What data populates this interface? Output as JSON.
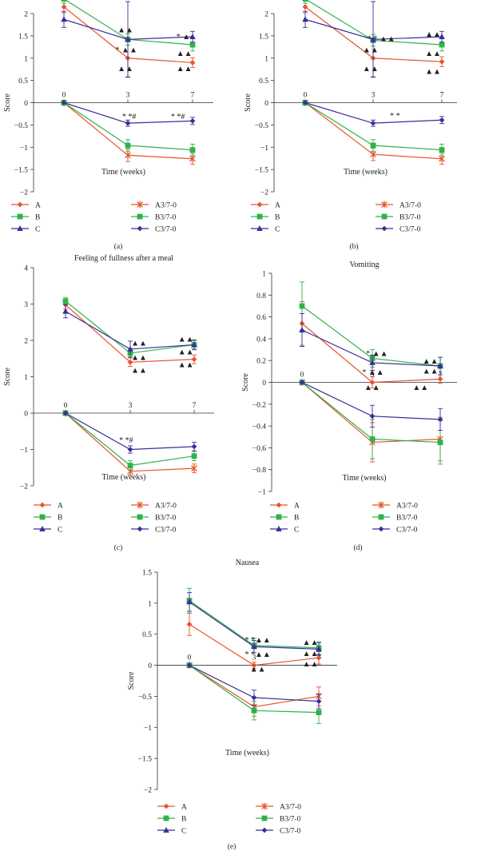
{
  "colors": {
    "A": "#e8542a",
    "B": "#2fb24a",
    "C": "#3a2f98",
    "C37": "#3a2f98",
    "axis": "#333333",
    "marker": "#111111"
  },
  "chart_data": [
    {
      "panel_label": "(a)",
      "title": "",
      "type": "line",
      "xlabel": "Time (weeks)",
      "ylabel": "Score",
      "ylim": [
        -2,
        2
      ],
      "yticks": [
        "−2",
        "−1.5",
        "−1",
        "−0.5",
        "0",
        "0.5",
        "1",
        "1.5",
        "2"
      ],
      "xticks": [
        "0",
        "3",
        "7"
      ],
      "series": [
        {
          "name": "A",
          "color_key": "A",
          "symbol": "diamond",
          "x": [
            0,
            3,
            7
          ],
          "y": [
            2.15,
            1.0,
            0.9
          ],
          "err": [
            0.13,
            0.42,
            0.11
          ]
        },
        {
          "name": "B",
          "color_key": "B",
          "symbol": "square",
          "x": [
            0,
            3,
            7
          ],
          "y": [
            2.33,
            1.42,
            1.3
          ],
          "err": [
            0.1,
            0.13,
            0.14
          ]
        },
        {
          "name": "C",
          "color_key": "C",
          "symbol": "triangle",
          "x": [
            0,
            3,
            7
          ],
          "y": [
            1.87,
            1.42,
            1.48
          ],
          "err": [
            0.18,
            0.85,
            0.12
          ]
        },
        {
          "name": "A3/7-0",
          "color_key": "A",
          "symbol": "x",
          "x": [
            0,
            3,
            7
          ],
          "y": [
            0,
            -1.18,
            -1.26
          ],
          "err": [
            0,
            0.14,
            0.12
          ]
        },
        {
          "name": "B3/7-0",
          "color_key": "B",
          "symbol": "square",
          "x": [
            0,
            3,
            7
          ],
          "y": [
            0,
            -0.96,
            -1.06
          ],
          "err": [
            0,
            0.13,
            0.13
          ]
        },
        {
          "name": "C3/7-0",
          "color_key": "C37",
          "symbol": "diamond",
          "x": [
            0,
            3,
            7
          ],
          "y": [
            0,
            -0.46,
            -0.41
          ],
          "err": [
            0,
            0.07,
            0.08
          ]
        }
      ],
      "annotations": [
        {
          "text": "▲▲",
          "x": 3.35,
          "y": 1.65
        },
        {
          "text": "* ▲▲",
          "x": 3.4,
          "y": 1.2
        },
        {
          "text": "▲▲",
          "x": 3.35,
          "y": 0.78
        },
        {
          "text": "* ▲",
          "x": 6.5,
          "y": 1.5
        },
        {
          "text": "▲▲",
          "x": 6.55,
          "y": 1.12
        },
        {
          "text": "▲▲",
          "x": 6.55,
          "y": 0.78
        },
        {
          "text": "* *#",
          "x": 3.55,
          "y": -0.3
        },
        {
          "text": "* *#",
          "x": 6.2,
          "y": -0.3
        }
      ]
    },
    {
      "panel_label": "(b)",
      "title": "",
      "type": "line",
      "xlabel": "Time (weeks)",
      "ylabel": "Score",
      "ylim": [
        -2,
        2
      ],
      "yticks": [
        "−2",
        "−1.5",
        "−1",
        "−0.5",
        "0",
        "0.5",
        "1",
        "1.5",
        "2"
      ],
      "xticks": [
        "0",
        "3",
        "7"
      ],
      "series": [
        {
          "name": "A",
          "color_key": "A",
          "symbol": "diamond",
          "x": [
            0,
            3,
            7
          ],
          "y": [
            2.15,
            1.0,
            0.92
          ],
          "err": [
            0.13,
            0.42,
            0.11
          ]
        },
        {
          "name": "B",
          "color_key": "B",
          "symbol": "square",
          "x": [
            0,
            3,
            7
          ],
          "y": [
            2.33,
            1.4,
            1.3
          ],
          "err": [
            0.1,
            0.13,
            0.14
          ]
        },
        {
          "name": "C",
          "color_key": "C",
          "symbol": "triangle",
          "x": [
            0,
            3,
            7
          ],
          "y": [
            1.87,
            1.42,
            1.48
          ],
          "err": [
            0.18,
            0.85,
            0.12
          ]
        },
        {
          "name": "A3/7-0",
          "color_key": "A",
          "symbol": "x",
          "x": [
            0,
            3,
            7
          ],
          "y": [
            0,
            -1.16,
            -1.26
          ],
          "err": [
            0,
            0.14,
            0.12
          ]
        },
        {
          "name": "B3/7-0",
          "color_key": "B",
          "symbol": "square",
          "x": [
            0,
            3,
            7
          ],
          "y": [
            0,
            -0.96,
            -1.06
          ],
          "err": [
            0,
            0.13,
            0.13
          ]
        },
        {
          "name": "C3/7-0",
          "color_key": "C37",
          "symbol": "diamond",
          "x": [
            0,
            3,
            7
          ],
          "y": [
            0,
            -0.46,
            -0.39
          ],
          "err": [
            0,
            0.07,
            0.08
          ]
        }
      ],
      "annotations": [
        {
          "text": "* *  ▲▲",
          "x": 3.9,
          "y": 1.45
        },
        {
          "text": "▲▲",
          "x": 3.35,
          "y": 1.2
        },
        {
          "text": "▲▲",
          "x": 3.35,
          "y": 0.78
        },
        {
          "text": "▲▲",
          "x": 6.55,
          "y": 1.55
        },
        {
          "text": "▲▲",
          "x": 6.55,
          "y": 1.12
        },
        {
          "text": "▲▲",
          "x": 6.55,
          "y": 0.72
        },
        {
          "text": "* *",
          "x": 4.6,
          "y": -0.28
        }
      ]
    },
    {
      "panel_label": "(c)",
      "title": "Feeling of fullness after a meal",
      "type": "line",
      "xlabel": "Time (weeks)",
      "ylabel": "Score",
      "ylim": [
        -2,
        4
      ],
      "yticks": [
        "−2",
        "−1",
        "0",
        "1",
        "2",
        "3",
        "4"
      ],
      "xticks": [
        "0",
        "3",
        "7"
      ],
      "series": [
        {
          "name": "A",
          "color_key": "A",
          "symbol": "diamond",
          "x": [
            0,
            3,
            7
          ],
          "y": [
            2.98,
            1.4,
            1.48
          ],
          "err": [
            0.12,
            0.12,
            0.12
          ]
        },
        {
          "name": "B",
          "color_key": "B",
          "symbol": "square",
          "x": [
            0,
            3,
            7
          ],
          "y": [
            3.08,
            1.65,
            1.88
          ],
          "err": [
            0.1,
            0.13,
            0.14
          ]
        },
        {
          "name": "C",
          "color_key": "C",
          "symbol": "triangle",
          "x": [
            0,
            3,
            7
          ],
          "y": [
            2.8,
            1.76,
            1.88
          ],
          "err": [
            0.18,
            0.22,
            0.12
          ]
        },
        {
          "name": "A3/7-0",
          "color_key": "A",
          "symbol": "x",
          "x": [
            0,
            3,
            7
          ],
          "y": [
            0,
            -1.6,
            -1.52
          ],
          "err": [
            0,
            0.1,
            0.12
          ]
        },
        {
          "name": "B3/7-0",
          "color_key": "B",
          "symbol": "square",
          "x": [
            0,
            3,
            7
          ],
          "y": [
            0,
            -1.44,
            -1.18
          ],
          "err": [
            0,
            0.13,
            0.13
          ]
        },
        {
          "name": "C3/7-0",
          "color_key": "C37",
          "symbol": "diamond",
          "x": [
            0,
            3,
            7
          ],
          "y": [
            0,
            -1.0,
            -0.92
          ],
          "err": [
            0,
            0.1,
            0.12
          ]
        }
      ],
      "annotations": [
        {
          "text": "▲▲",
          "x": 4.0,
          "y": 1.95
        },
        {
          "text": "▲▲",
          "x": 4.0,
          "y": 1.55
        },
        {
          "text": "▲▲",
          "x": 4.0,
          "y": 1.2
        },
        {
          "text": "▲▲",
          "x": 6.55,
          "y": 2.05
        },
        {
          "text": "▲▲",
          "x": 6.55,
          "y": 1.7
        },
        {
          "text": "▲▲",
          "x": 6.55,
          "y": 1.35
        },
        {
          "text": "* *#",
          "x": 3.3,
          "y": -0.72
        }
      ]
    },
    {
      "panel_label": "(d)",
      "title": "Vomiting",
      "type": "line",
      "xlabel": "Time (weeks)",
      "ylabel": "Score",
      "ylim": [
        -1,
        1
      ],
      "yticks": [
        "−1",
        "−0.8",
        "−0.6",
        "−0.4",
        "−0.2",
        "0",
        "0.2",
        "0.4",
        "0.6",
        "0.8",
        "1"
      ],
      "xticks": [
        "0",
        "3",
        "7"
      ],
      "series": [
        {
          "name": "A",
          "color_key": "A",
          "symbol": "diamond",
          "x": [
            0,
            3,
            7
          ],
          "y": [
            0.54,
            0.0,
            0.03
          ],
          "err": [
            0.2,
            0.05,
            0.04
          ]
        },
        {
          "name": "B",
          "color_key": "B",
          "symbol": "square",
          "x": [
            0,
            3,
            7
          ],
          "y": [
            0.7,
            0.22,
            0.15
          ],
          "err": [
            0.22,
            0.08,
            0.08
          ]
        },
        {
          "name": "C",
          "color_key": "C",
          "symbol": "triangle",
          "x": [
            0,
            3,
            7
          ],
          "y": [
            0.48,
            0.18,
            0.15
          ],
          "err": [
            0.15,
            0.07,
            0.08
          ]
        },
        {
          "name": "A3/7-0",
          "color_key": "A",
          "symbol": "x",
          "x": [
            0,
            3,
            7
          ],
          "y": [
            0,
            -0.55,
            -0.52
          ],
          "err": [
            0,
            0.18,
            0.2
          ]
        },
        {
          "name": "B3/7-0",
          "color_key": "B",
          "symbol": "square",
          "x": [
            0,
            3,
            7
          ],
          "y": [
            0,
            -0.52,
            -0.55
          ],
          "err": [
            0,
            0.18,
            0.2
          ]
        },
        {
          "name": "C3/7-0",
          "color_key": "C37",
          "symbol": "diamond",
          "x": [
            0,
            3,
            7
          ],
          "y": [
            0,
            -0.31,
            -0.34
          ],
          "err": [
            0,
            0.1,
            0.1
          ]
        }
      ],
      "annotations": [
        {
          "text": "* ▲▲",
          "x": 3.8,
          "y": 0.27
        },
        {
          "text": "* ▲▲",
          "x": 3.6,
          "y": 0.1
        },
        {
          "text": "▲▲",
          "x": 3.55,
          "y": -0.04
        },
        {
          "text": "▲▲",
          "x": 6.5,
          "y": 0.2
        },
        {
          "text": "▲▲",
          "x": 6.5,
          "y": 0.11
        },
        {
          "text": "▲▲",
          "x": 6.0,
          "y": -0.04
        }
      ]
    },
    {
      "panel_label": "(e)",
      "title": "Nausea",
      "type": "line",
      "xlabel": "Time (weeks)",
      "ylabel": "Score",
      "ylim": [
        -2,
        1.5
      ],
      "yticks": [
        "−2",
        "−1.5",
        "−1",
        "−0.5",
        "0",
        "0.5",
        "1",
        "1.5"
      ],
      "xticks": [
        "0",
        "3",
        "7"
      ],
      "series": [
        {
          "name": "A",
          "color_key": "A",
          "symbol": "diamond",
          "x": [
            0,
            3,
            7
          ],
          "y": [
            0.66,
            0.0,
            0.12
          ],
          "err": [
            0.18,
            0.05,
            0.1
          ]
        },
        {
          "name": "B",
          "color_key": "B",
          "symbol": "square",
          "x": [
            0,
            3,
            7
          ],
          "y": [
            1.04,
            0.32,
            0.28
          ],
          "err": [
            0.2,
            0.12,
            0.1
          ]
        },
        {
          "name": "C",
          "color_key": "C",
          "symbol": "triangle",
          "x": [
            0,
            3,
            7
          ],
          "y": [
            1.02,
            0.3,
            0.26
          ],
          "err": [
            0.15,
            0.1,
            0.1
          ]
        },
        {
          "name": "A3/7-0",
          "color_key": "A",
          "symbol": "x",
          "x": [
            0,
            3,
            7
          ],
          "y": [
            0,
            -0.67,
            -0.5
          ],
          "err": [
            0,
            0.15,
            0.15
          ]
        },
        {
          "name": "B3/7-0",
          "color_key": "B",
          "symbol": "square",
          "x": [
            0,
            3,
            7
          ],
          "y": [
            0,
            -0.73,
            -0.76
          ],
          "err": [
            0,
            0.15,
            0.18
          ]
        },
        {
          "name": "C3/7-0",
          "color_key": "C37",
          "symbol": "diamond",
          "x": [
            0,
            3,
            7
          ],
          "y": [
            0,
            -0.52,
            -0.58
          ],
          "err": [
            0,
            0.12,
            0.12
          ]
        }
      ],
      "annotations": [
        {
          "text": "* *▲▲",
          "x": 3.7,
          "y": 0.42
        },
        {
          "text": "* *▲▲",
          "x": 3.7,
          "y": 0.19
        },
        {
          "text": "▲▲",
          "x": 3.7,
          "y": -0.05
        },
        {
          "text": "▲▲",
          "x": 6.55,
          "y": 0.38
        },
        {
          "text": "▲▲",
          "x": 6.55,
          "y": 0.2
        },
        {
          "text": "▲▲",
          "x": 6.55,
          "y": 0.03
        }
      ]
    }
  ]
}
